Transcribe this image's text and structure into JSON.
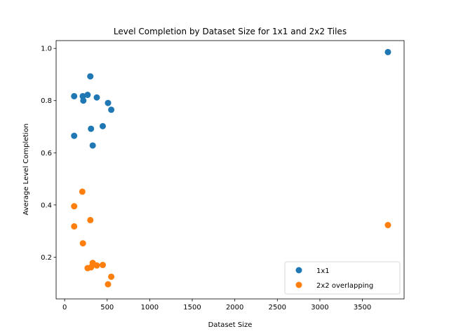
{
  "chart_data": {
    "type": "scatter",
    "title": "Level Completion by Dataset Size for 1x1 and 2x2 Tiles",
    "xlabel": "Dataset Size",
    "ylabel": "Average Level Completion",
    "xlim": [
      -100,
      3990
    ],
    "ylim": [
      0.04,
      1.03
    ],
    "xticks": [
      0,
      500,
      1000,
      1500,
      2000,
      2500,
      3000,
      3500
    ],
    "yticks": [
      0.2,
      0.4,
      0.6,
      0.8,
      1.0
    ],
    "xtick_labels": [
      "0",
      "500",
      "1000",
      "1500",
      "2000",
      "2500",
      "3000",
      "3500"
    ],
    "ytick_labels": [
      "0.2",
      "0.4",
      "0.6",
      "0.8",
      "1.0"
    ],
    "grid": false,
    "legend_position": "lower-right",
    "series": [
      {
        "name": "1x1",
        "color": "#1f77b4",
        "points": [
          {
            "x": 112,
            "y": 0.817
          },
          {
            "x": 112,
            "y": 0.665
          },
          {
            "x": 213,
            "y": 0.817
          },
          {
            "x": 220,
            "y": 0.8
          },
          {
            "x": 270,
            "y": 0.822
          },
          {
            "x": 302,
            "y": 0.893
          },
          {
            "x": 310,
            "y": 0.692
          },
          {
            "x": 330,
            "y": 0.628
          },
          {
            "x": 378,
            "y": 0.812
          },
          {
            "x": 448,
            "y": 0.702
          },
          {
            "x": 510,
            "y": 0.791
          },
          {
            "x": 548,
            "y": 0.765
          },
          {
            "x": 3800,
            "y": 0.986
          }
        ]
      },
      {
        "name": "2x2 overlapping",
        "color": "#ff7f0e",
        "points": [
          {
            "x": 112,
            "y": 0.395
          },
          {
            "x": 112,
            "y": 0.318
          },
          {
            "x": 208,
            "y": 0.451
          },
          {
            "x": 215,
            "y": 0.253
          },
          {
            "x": 270,
            "y": 0.158
          },
          {
            "x": 302,
            "y": 0.342
          },
          {
            "x": 310,
            "y": 0.161
          },
          {
            "x": 330,
            "y": 0.178
          },
          {
            "x": 378,
            "y": 0.168
          },
          {
            "x": 448,
            "y": 0.17
          },
          {
            "x": 510,
            "y": 0.096
          },
          {
            "x": 548,
            "y": 0.125
          },
          {
            "x": 3800,
            "y": 0.323
          }
        ]
      }
    ]
  }
}
